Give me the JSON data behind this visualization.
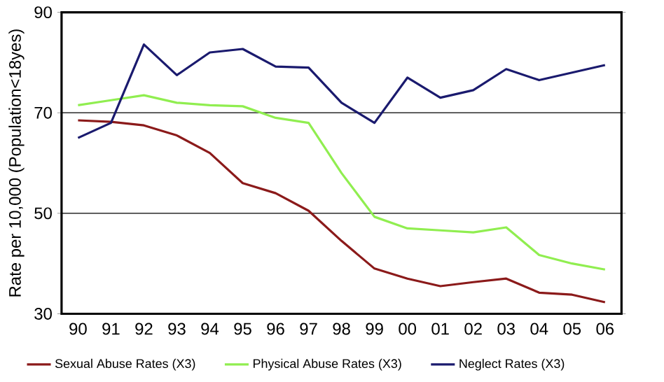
{
  "chart_data": {
    "type": "line",
    "ylabel": "Rate per 10,000 (Population<18yes)",
    "categories": [
      "90",
      "91",
      "92",
      "93",
      "94",
      "95",
      "96",
      "97",
      "98",
      "99",
      "00",
      "01",
      "02",
      "03",
      "04",
      "05",
      "06"
    ],
    "series": [
      {
        "name": "Sexual Abuse Rates (X3)",
        "color": "#8b1a1a",
        "values": [
          68.5,
          68.2,
          67.5,
          65.5,
          62,
          56,
          54,
          50.5,
          44.5,
          39,
          37,
          35.5,
          36.3,
          37,
          34.2,
          33.8,
          32.3
        ]
      },
      {
        "name": "Physical Abuse Rates (X3)",
        "color": "#90ee50",
        "values": [
          71.5,
          72.5,
          73.5,
          72,
          71.5,
          71.3,
          69,
          68,
          58,
          49.3,
          47,
          46.6,
          46.2,
          47.2,
          41.7,
          40,
          38.8
        ]
      },
      {
        "name": "Neglect Rates (X3)",
        "color": "#1a1a6e",
        "values": [
          65,
          68,
          83.6,
          77.5,
          82,
          82.7,
          79.2,
          79,
          72,
          68,
          77,
          73,
          74.5,
          78.7,
          76.5,
          78,
          79.5
        ]
      }
    ],
    "ylim": [
      30,
      90
    ],
    "yticks": [
      30,
      50,
      70,
      90
    ],
    "grid": "y",
    "legend": "bottom",
    "marker": "none",
    "line_style": "solid"
  }
}
